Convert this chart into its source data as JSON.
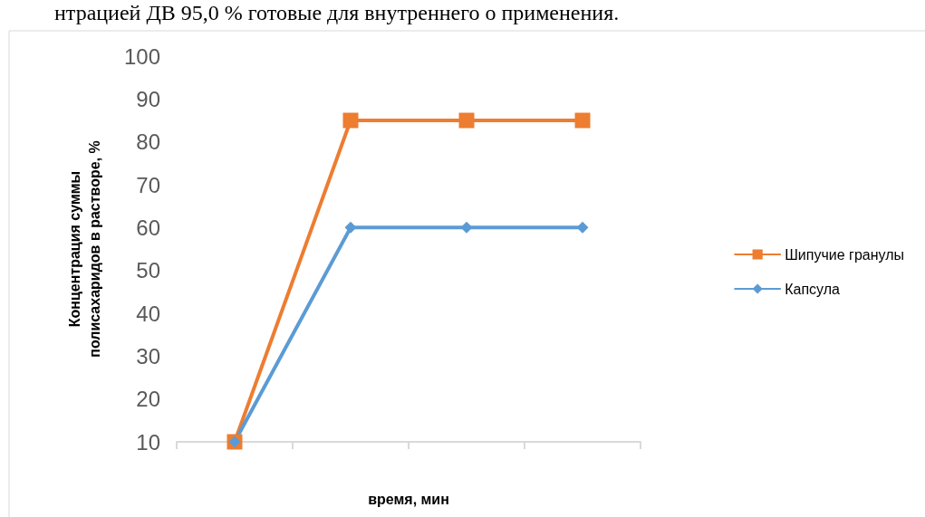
{
  "chart_data": {
    "type": "line",
    "annotations": [
      "нтрацией ДВ 95,0 % готовые для внутреннего о применения."
    ],
    "xlabel": "время, мин",
    "ylabel": "Концентрация суммы\nполисахаридов в растворе, %",
    "categories": [
      null,
      null,
      null,
      null
    ],
    "series": [
      {
        "name": "Шипучие гранулы",
        "color": "#ed7d31",
        "marker": "square",
        "values": [
          10,
          85,
          85,
          85
        ]
      },
      {
        "name": "Капсула",
        "color": "#5b9bd5",
        "marker": "diamond",
        "values": [
          10,
          60,
          60,
          60
        ]
      }
    ],
    "ylim": [
      10,
      100
    ],
    "yticks": [
      10,
      20,
      30,
      40,
      50,
      60,
      70,
      80,
      90,
      100
    ],
    "grid": false,
    "legend": "right",
    "line_style": "solid"
  }
}
